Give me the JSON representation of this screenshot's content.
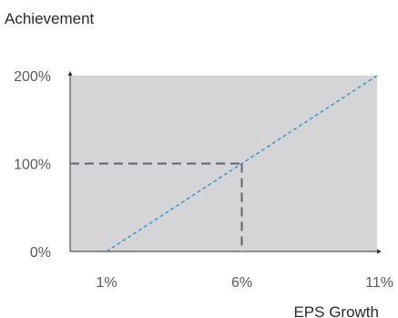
{
  "chart_data": {
    "type": "line",
    "title": "Achievement",
    "xlabel": "EPS Growth",
    "ylabel": "",
    "x_tick_labels": [
      "1%",
      "6%",
      "11%"
    ],
    "y_tick_labels": [
      "0%",
      "100%",
      "200%"
    ],
    "xlim": [
      1,
      11
    ],
    "ylim": [
      0,
      200
    ],
    "series": [
      {
        "x": [
          1,
          6,
          11
        ],
        "y": [
          0,
          100,
          200
        ],
        "style": "dotted",
        "color": "#1f8fd6"
      }
    ],
    "reference_point": {
      "x": 6,
      "y": 100,
      "style": "dashed",
      "color": "#606468"
    },
    "plot_background": "#d5d5d7",
    "grid": false
  }
}
